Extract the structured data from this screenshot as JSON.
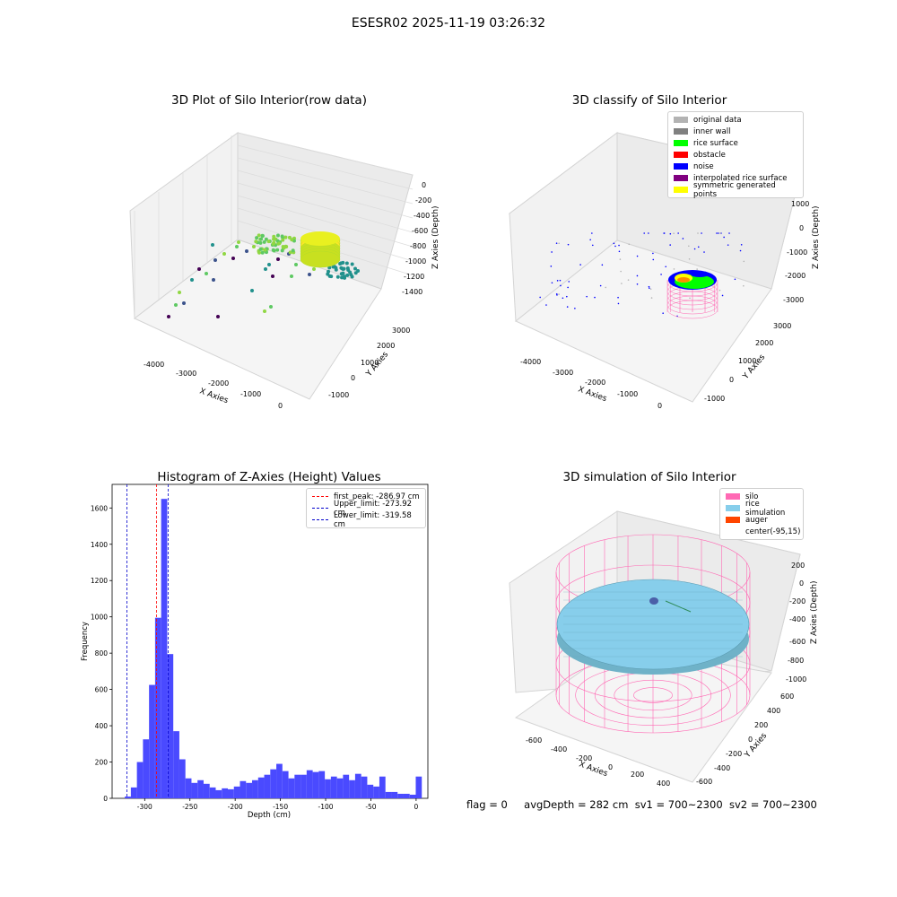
{
  "suptitle": "ESESR02 2025-11-19 03:26:32",
  "colors": {
    "original_data": "#b3b3b3",
    "inner_wall": "#808080",
    "rice_surface": "#00ff00",
    "obstacle": "#ff0000",
    "noise": "#0000ff",
    "interpolated": "#800080",
    "symmetric": "#ffff00",
    "silo": "#ff69b4",
    "rice_sim": "#87ceeb",
    "auger": "#ff4500",
    "hist_bar": "#4a4aff"
  },
  "chart_data": [
    {
      "type": "scatter",
      "title": "3D Plot of Silo Interior(row data)",
      "xlabel": "X Axies",
      "ylabel": "Y Axies",
      "zlabel": "Z Axies (Depth)",
      "x_ticks": [
        "-4000",
        "-3000",
        "-2000",
        "-1000",
        "0"
      ],
      "y_ticks": [
        "-1000",
        "0",
        "1000",
        "2000",
        "3000"
      ],
      "z_ticks": [
        "0",
        "-200",
        "-400",
        "-600",
        "-800",
        "-1000",
        "-1200",
        "-1400"
      ],
      "colormap": "viridis"
    },
    {
      "type": "scatter",
      "title": "3D classify of Silo Interior",
      "xlabel": "X Axies",
      "ylabel": "Y Axies",
      "zlabel": "Z Axies (Depth)",
      "x_ticks": [
        "-4000",
        "-3000",
        "-2000",
        "-1000",
        "0"
      ],
      "y_ticks": [
        "-1000",
        "0",
        "1000",
        "2000",
        "3000"
      ],
      "z_ticks": [
        "1000",
        "0",
        "-1000",
        "-2000",
        "-3000"
      ],
      "legend": [
        "original data",
        "inner wall",
        "rice surface",
        "obstacle",
        "noise",
        "interpolated rice surface",
        "symmetric generated points"
      ],
      "legend_position": "top-right"
    },
    {
      "type": "bar",
      "title": "Histogram of Z-Axies (Height) Values",
      "xlabel": "Depth (cm)",
      "ylabel": "Frequency",
      "xlim": [
        -336,
        13
      ],
      "ylim": [
        0,
        1730
      ],
      "x_ticks": [
        -300,
        -250,
        -200,
        -150,
        -100,
        -50,
        0
      ],
      "y_ticks": [
        0,
        200,
        400,
        600,
        800,
        1000,
        1200,
        1400,
        1600
      ],
      "bin_width": 6.7,
      "bin_start": -322,
      "values": [
        10,
        60,
        200,
        325,
        625,
        995,
        1650,
        795,
        370,
        215,
        110,
        85,
        100,
        80,
        60,
        45,
        55,
        50,
        65,
        95,
        85,
        100,
        115,
        130,
        160,
        190,
        150,
        110,
        130,
        130,
        155,
        145,
        150,
        105,
        120,
        110,
        130,
        100,
        135,
        120,
        75,
        65,
        120,
        35,
        35,
        25,
        25,
        20,
        120
      ],
      "vlines": [
        {
          "label": "first_peak: -286.97 cm",
          "x": -286.97,
          "color": "#ff0000"
        },
        {
          "label": "Upper_limit: -273.92 cm",
          "x": -273.92,
          "color": "#0000cc"
        },
        {
          "label": "Lower_limit: -319.58 cm",
          "x": -319.58,
          "color": "#0000cc"
        }
      ],
      "legend_position": "top-right"
    },
    {
      "type": "scatter",
      "title": "3D simulation of Silo Interior",
      "xlabel": "X Axies",
      "ylabel": "Y Axies",
      "zlabel": "Z Axies (Depth)",
      "x_ticks": [
        "-600",
        "-400",
        "-200",
        "0",
        "200",
        "400"
      ],
      "y_ticks": [
        "-600",
        "-400",
        "-200",
        "0",
        "200",
        "400",
        "600"
      ],
      "z_ticks": [
        "200",
        "0",
        "-200",
        "-400",
        "-600",
        "-800",
        "-1000"
      ],
      "legend": [
        "silo",
        "rice simulation",
        "auger",
        "center(-95,15)"
      ],
      "legend_position": "top-right"
    }
  ],
  "footer": {
    "flag": "flag = 0",
    "avg": "avgDepth = 282 cm",
    "sv1": "sv1 = 700~2300",
    "sv2": "sv2 = 700~2300"
  }
}
